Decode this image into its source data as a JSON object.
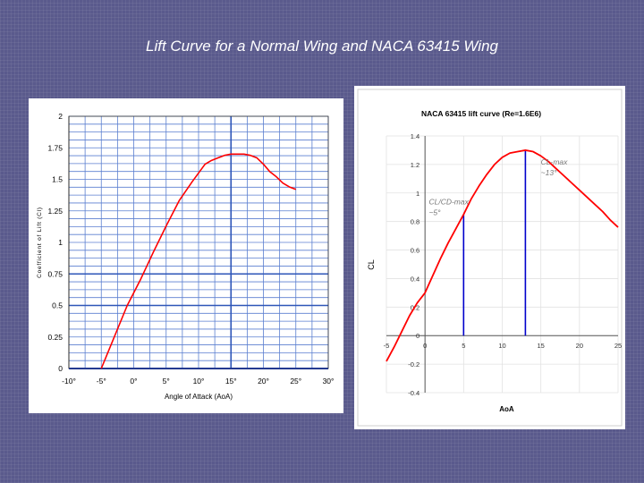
{
  "slide": {
    "title": "Lift Curve for a Normal Wing and NACA 63415 Wing"
  },
  "chart_data": [
    {
      "type": "line",
      "title": "",
      "xlabel": "Angle of Attack (AoA)",
      "ylabel": "Coefficient of Lift (Cl)",
      "xlim": [
        -10,
        30
      ],
      "ylim": [
        0,
        2
      ],
      "xticks": [
        -10,
        -5,
        0,
        5,
        10,
        15,
        20,
        25,
        30
      ],
      "xtick_labels": [
        "-10°",
        "-5°",
        "0°",
        "5°",
        "10°",
        "15°",
        "20°",
        "25°",
        "30°"
      ],
      "yticks": [
        0,
        0.25,
        0.5,
        0.75,
        1,
        1.25,
        1.5,
        1.75,
        2
      ],
      "ytick_labels": [
        "0",
        "0.25",
        "0.5",
        "0.75",
        "1",
        "1.25",
        "1.5",
        "1.75",
        "2"
      ],
      "grid": true,
      "series": [
        {
          "name": "Normal Wing",
          "color": "#ff0000",
          "x": [
            -5,
            -3,
            -1,
            1,
            3,
            5,
            7,
            9,
            11,
            12,
            13,
            14,
            15,
            16,
            17,
            18,
            19,
            20,
            21,
            22,
            23,
            24,
            25
          ],
          "y": [
            0.0,
            0.25,
            0.5,
            0.7,
            0.92,
            1.13,
            1.33,
            1.48,
            1.62,
            1.65,
            1.67,
            1.69,
            1.7,
            1.7,
            1.7,
            1.69,
            1.67,
            1.62,
            1.56,
            1.52,
            1.47,
            1.44,
            1.42
          ]
        }
      ]
    },
    {
      "type": "line",
      "title": "NACA 63415 lift curve (Re=1.6E6)",
      "xlabel": "AoA",
      "ylabel": "CL",
      "xlim": [
        -5,
        25
      ],
      "ylim": [
        -0.4,
        1.4
      ],
      "xticks": [
        -5,
        0,
        5,
        10,
        15,
        20,
        25
      ],
      "xtick_labels": [
        "-5",
        "0",
        "5",
        "10",
        "15",
        "20",
        "25"
      ],
      "yticks": [
        -0.4,
        -0.2,
        0,
        0.2,
        0.4,
        0.6,
        0.8,
        1,
        1.2,
        1.4
      ],
      "ytick_labels": [
        "-0.4",
        "-0.2",
        "0",
        "0.2",
        "0.4",
        "0.6",
        "0.8",
        "1",
        "1.2",
        "1.4"
      ],
      "grid": true,
      "series": [
        {
          "name": "NACA 63415",
          "color": "#ff0000",
          "x": [
            -5,
            -4,
            -3,
            -2,
            -1,
            0,
            1,
            2,
            3,
            4,
            5,
            6,
            7,
            8,
            9,
            10,
            11,
            12,
            13,
            14,
            15,
            16,
            17,
            18,
            19,
            20,
            21,
            22,
            23,
            24,
            25
          ],
          "y": [
            -0.18,
            -0.08,
            0.03,
            0.14,
            0.23,
            0.3,
            0.42,
            0.54,
            0.65,
            0.75,
            0.85,
            0.96,
            1.05,
            1.13,
            1.2,
            1.25,
            1.28,
            1.29,
            1.3,
            1.29,
            1.26,
            1.22,
            1.17,
            1.12,
            1.07,
            1.02,
            0.97,
            0.92,
            0.87,
            0.81,
            0.76
          ]
        }
      ],
      "markers": [
        {
          "name": "max-lift-drag-ratio",
          "x": 5,
          "y": 0.85,
          "color": "#0000cc"
        },
        {
          "name": "max-cl",
          "x": 13,
          "y": 1.3,
          "color": "#0000cc"
        }
      ],
      "annotations": [
        {
          "name": "annotation-cl-max",
          "lines": [
            "CL-max",
            "~13°"
          ],
          "x": 15,
          "y": 1.2
        },
        {
          "name": "annotation-cl-cd-max",
          "lines": [
            "CL/CD-max",
            "~5°"
          ],
          "x": 0.5,
          "y": 0.92
        }
      ]
    }
  ]
}
